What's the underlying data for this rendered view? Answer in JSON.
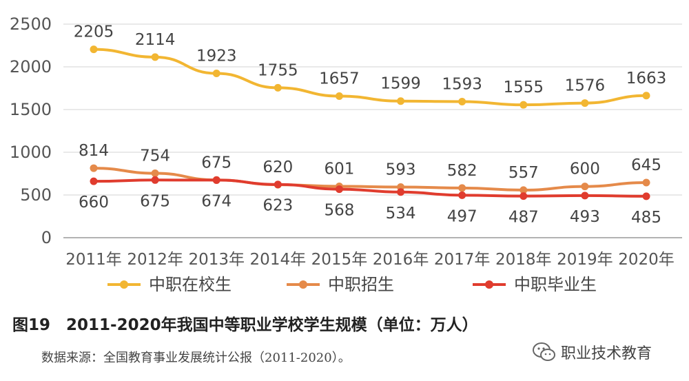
{
  "chart_data": {
    "type": "line",
    "x": [
      "2011年",
      "2012年",
      "2013年",
      "2014年",
      "2015年",
      "2016年",
      "2017年",
      "2018年",
      "2019年",
      "2020年"
    ],
    "ylim": [
      0,
      2500
    ],
    "yticks": [
      0,
      500,
      1000,
      1500,
      2000,
      2500
    ],
    "grid": true,
    "legend_position": "bottom",
    "series": [
      {
        "name": "中职在校生",
        "color": "#F2B632",
        "label_pos": "above",
        "values": [
          2205,
          2114,
          1923,
          1755,
          1657,
          1599,
          1593,
          1555,
          1576,
          1663
        ]
      },
      {
        "name": "中职招生",
        "color": "#E58A4A",
        "label_pos": "above",
        "values": [
          814,
          754,
          675,
          620,
          601,
          593,
          582,
          557,
          600,
          645
        ]
      },
      {
        "name": "中职毕业生",
        "color": "#E03C2E",
        "label_pos": "below",
        "values": [
          660,
          675,
          674,
          623,
          568,
          534,
          497,
          487,
          493,
          485
        ]
      }
    ]
  },
  "caption": "图19　2011-2020年我国中等职业学校学生规模（单位：万人）",
  "source": "数据来源：全国教育事业发展统计公报（2011-2020）。",
  "watermark": {
    "text": "职业技术教育",
    "icon": "wechat-icon"
  }
}
